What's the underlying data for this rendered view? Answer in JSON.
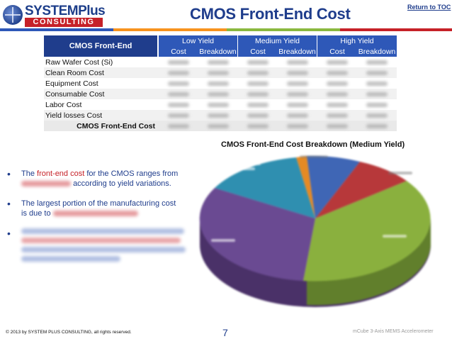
{
  "header": {
    "logo_top": "SYSTEMPlus",
    "logo_bottom": "CONSULTING",
    "title": "CMOS Front-End Cost",
    "return_link": "Return to TOC",
    "color_bar": [
      "#2e58b8",
      "#f7931e",
      "#8ab83f",
      "#c62128"
    ]
  },
  "table": {
    "corner": "CMOS Front-End",
    "groups": [
      "Low Yield",
      "Medium Yield",
      "High Yield"
    ],
    "sub": [
      "Cost",
      "Breakdown",
      "Cost",
      "Breakdown",
      "Cost",
      "Breakdown"
    ],
    "rows": [
      "Raw Wafer Cost (Si)",
      "Clean Room Cost",
      "Equipment Cost",
      "Consumable Cost",
      "Labor Cost",
      "Yield losses Cost"
    ],
    "total": "CMOS Front-End Cost"
  },
  "chart_title": "CMOS Front-End Cost Breakdown (Medium Yield)",
  "bullets": {
    "b1_pre": "The ",
    "b1_red": "front-end cost",
    "b1_mid": " for the CMOS ranges from",
    "b1_post": "according to yield variations.",
    "b2_a": "The largest portion of the manufacturing cost",
    "b2_b": "is due to"
  },
  "footer": {
    "copyright": "© 2013 by SYSTEM PLUS CONSULTING, all rights reserved.",
    "page": "7",
    "product": "mCube 3-Axis MEMS Accelerometer"
  },
  "colors": {
    "navy": "#1f3d8c",
    "blue": "#2e58b8",
    "red": "#c62128",
    "pie_green": "#8ab03e",
    "pie_purple": "#6a4a92",
    "pie_teal": "#2f8fb0",
    "pie_orange": "#e58a24",
    "pie_blue": "#3f66b5",
    "pie_red": "#b7383a"
  }
}
